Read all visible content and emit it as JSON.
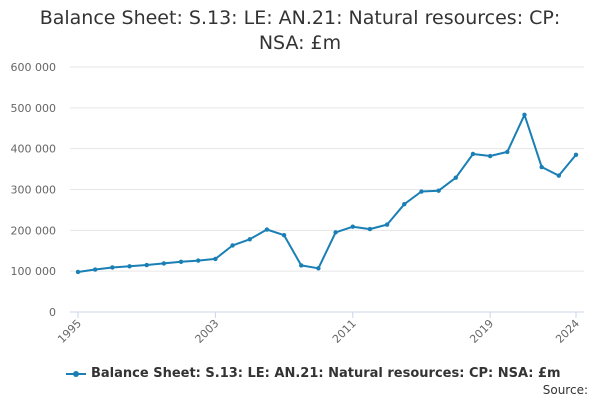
{
  "chart_data": {
    "type": "line",
    "title": "Balance Sheet: S.13: LE: AN.21: Natural resources: CP: NSA: £m",
    "xlabel": "",
    "ylabel": "",
    "x": [
      1995,
      1996,
      1997,
      1998,
      1999,
      2000,
      2001,
      2002,
      2003,
      2004,
      2005,
      2006,
      2007,
      2008,
      2009,
      2010,
      2011,
      2012,
      2013,
      2014,
      2015,
      2016,
      2017,
      2018,
      2019,
      2020,
      2021,
      2022,
      2023,
      2024
    ],
    "x_tick_labels": [
      "1995",
      "2003",
      "2011",
      "2019",
      "2024"
    ],
    "xlim": [
      1995,
      2024
    ],
    "ylim": [
      0,
      600000
    ],
    "y_ticks": [
      0,
      100000,
      200000,
      300000,
      400000,
      500000,
      600000
    ],
    "y_tick_labels": [
      "0",
      "100 000",
      "200 000",
      "300 000",
      "400 000",
      "500 000",
      "600 000"
    ],
    "grid": true,
    "legend": "bottom",
    "series": [
      {
        "name": "Balance Sheet: S.13: LE: AN.21: Natural resources: CP: NSA: £m",
        "color": "#1a7fb5",
        "values": [
          98000,
          104000,
          109000,
          112000,
          115000,
          119000,
          123000,
          126000,
          130000,
          163000,
          178000,
          202000,
          188000,
          114000,
          107000,
          195000,
          209000,
          203000,
          214000,
          264000,
          295000,
          297000,
          329000,
          387000,
          382000,
          392000,
          483000,
          355000,
          334000,
          385000
        ]
      }
    ]
  },
  "footer": {
    "source": "Source:"
  }
}
